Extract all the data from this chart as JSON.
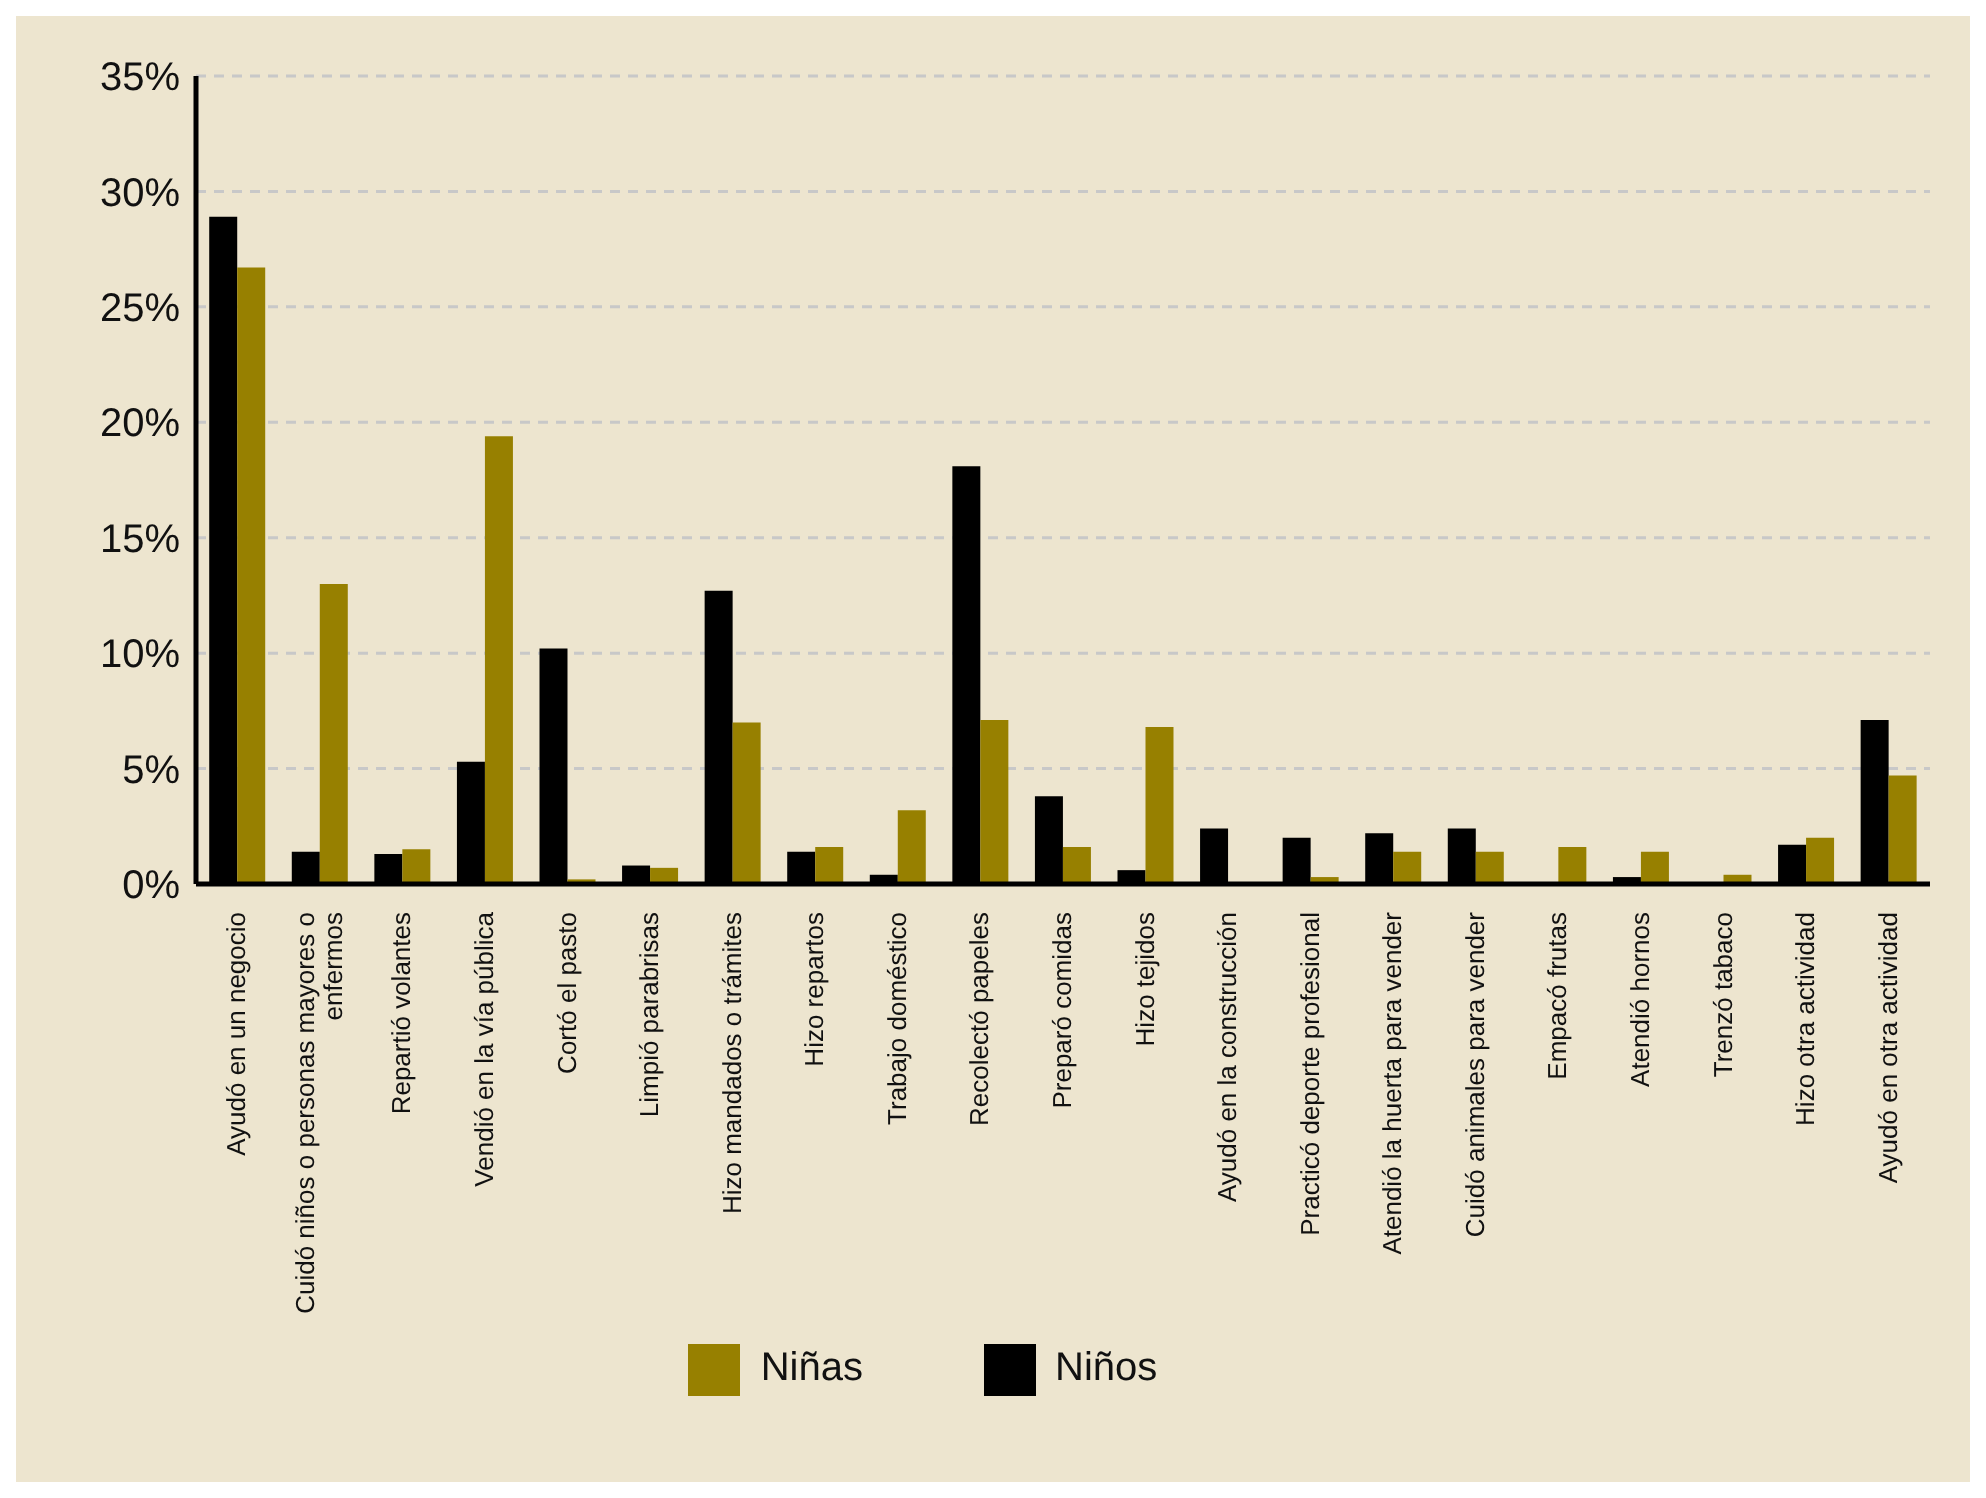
{
  "chart_data": {
    "type": "bar",
    "categories": [
      "Ayudó en un negocio",
      "Cuidó niños o personas mayores o enfermos",
      "Repartió volantes",
      "Vendió en la vía pública",
      "Cortó el pasto",
      "Limpió parabrisas",
      "Hizo mandados o trámites",
      "Hizo repartos",
      "Trabajo doméstico",
      "Recolectó papeles",
      "Preparó comidas",
      "Hizo tejidos",
      "Ayudó en la construcción",
      "Practicó deporte profesional",
      "Atendió la huerta para vender",
      "Cuidó animales para vender",
      "Empacó frutas",
      "Atendió hornos",
      "Trenzó tabaco",
      "Hizo otra actividad",
      "Ayudó en otra actividad"
    ],
    "series": [
      {
        "name": "Niños",
        "color": "#000000",
        "values": [
          28.9,
          1.4,
          1.3,
          5.3,
          10.2,
          0.8,
          12.7,
          1.4,
          0.4,
          18.1,
          3.8,
          0.6,
          2.4,
          2.0,
          2.2,
          2.4,
          0,
          0.3,
          0,
          1.7,
          7.1
        ]
      },
      {
        "name": "Niñas",
        "color": "#978000",
        "values": [
          26.7,
          13.0,
          1.5,
          19.4,
          0.2,
          0.7,
          7.0,
          1.6,
          3.2,
          7.1,
          1.6,
          6.8,
          0,
          0.3,
          1.4,
          1.4,
          1.6,
          1.4,
          0.4,
          2.0,
          4.7
        ]
      }
    ],
    "ylim": [
      0,
      35
    ],
    "yticks": [
      {
        "value": 0,
        "label": "0%"
      },
      {
        "value": 5,
        "label": "5%"
      },
      {
        "value": 10,
        "label": "10%"
      },
      {
        "value": 15,
        "label": "15%"
      },
      {
        "value": 20,
        "label": "20%"
      },
      {
        "value": 25,
        "label": "25%"
      },
      {
        "value": 30,
        "label": "30%"
      },
      {
        "value": 35,
        "label": "35%"
      }
    ],
    "grid": "y",
    "legend": "bottom"
  }
}
